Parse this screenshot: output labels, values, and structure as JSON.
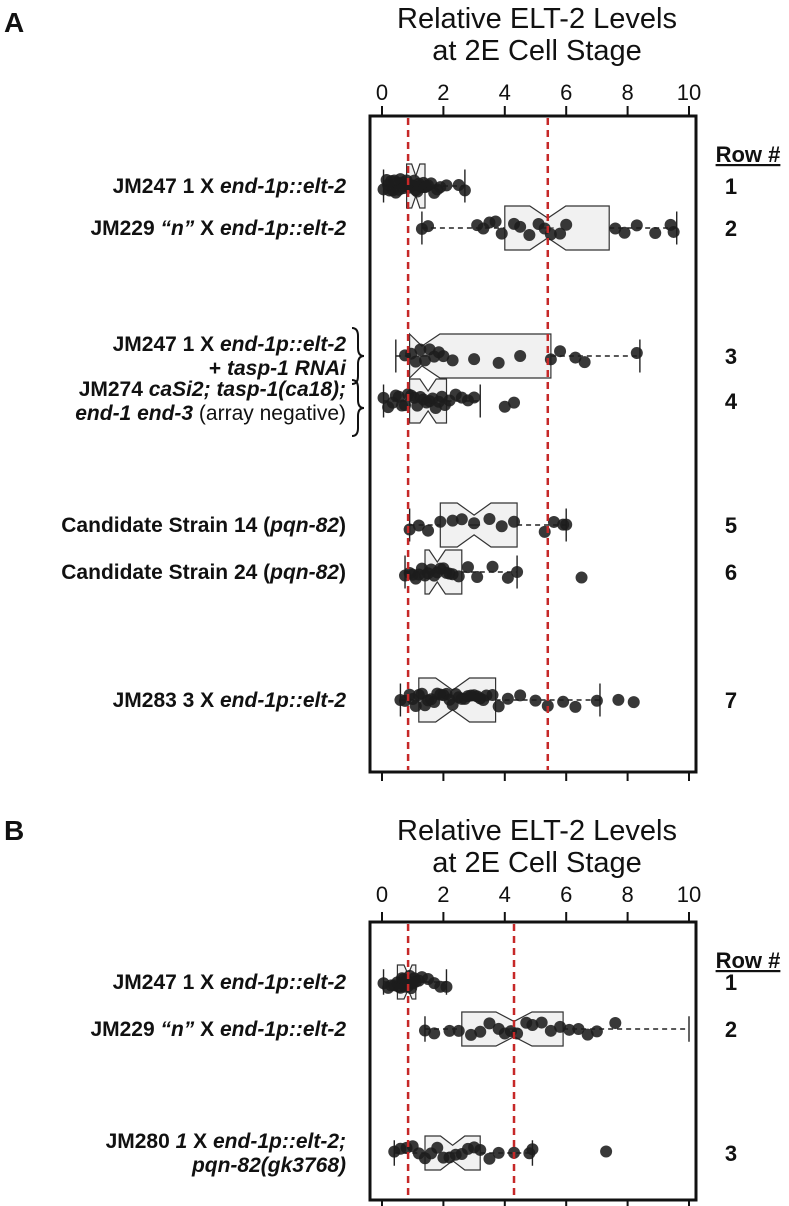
{
  "chart_data": [
    {
      "panel": "A",
      "type": "box",
      "title_lines": [
        "Relative ELT-2 Levels",
        "at 2E Cell Stage"
      ],
      "xlim": [
        0,
        10
      ],
      "x_ticks": [
        "0",
        "2",
        "4",
        "6",
        "8",
        "10"
      ],
      "reference_lines": [
        0.85,
        5.4
      ],
      "row_header": "Row #",
      "rows": [
        {
          "row": "1",
          "label_parts": [
            {
              "text": "JM247  1 X ",
              "s": "b"
            },
            {
              "text": "end-1p::elt-2",
              "s": "bi"
            }
          ],
          "box": {
            "q1": 0.8,
            "median": 1.1,
            "q3": 1.4,
            "whisker_low": 0.05,
            "whisker_high": 2.7
          },
          "points": [
            0.05,
            0.15,
            0.2,
            0.25,
            0.3,
            0.35,
            0.4,
            0.45,
            0.5,
            0.55,
            0.6,
            0.65,
            0.7,
            0.75,
            0.8,
            0.85,
            0.9,
            0.95,
            1.0,
            1.05,
            1.1,
            1.15,
            1.2,
            1.25,
            1.3,
            1.35,
            1.4,
            1.45,
            1.5,
            1.6,
            1.7,
            1.8,
            1.9,
            2.1,
            2.5,
            2.7
          ]
        },
        {
          "row": "2",
          "label_parts": [
            {
              "text": "JM229 ",
              "s": "b"
            },
            {
              "text": "“n”",
              "s": "bi"
            },
            {
              "text": " X ",
              "s": "b"
            },
            {
              "text": "end-1p::elt-2",
              "s": "bi"
            }
          ],
          "box": {
            "q1": 4.0,
            "median": 5.4,
            "q3": 7.4,
            "whisker_low": 1.3,
            "whisker_high": 9.6
          },
          "points": [
            1.3,
            1.5,
            3.1,
            3.3,
            3.5,
            3.7,
            3.9,
            4.3,
            4.5,
            4.8,
            5.1,
            5.3,
            5.5,
            5.8,
            6.0,
            7.6,
            7.9,
            8.3,
            8.9,
            9.4,
            9.5
          ]
        },
        {
          "row": "3",
          "label_parts": [
            {
              "text": "JM247  1 X ",
              "s": "b"
            },
            {
              "text": "end-1p::elt-2",
              "s": "bi"
            }
          ],
          "label2_parts": [
            {
              "text": "+ ",
              "s": "b"
            },
            {
              "text": "tasp-1 RNAi",
              "s": "bi"
            }
          ],
          "box": {
            "q1": 0.9,
            "median": 1.3,
            "q3": 5.5,
            "whisker_low": 0.45,
            "whisker_high": 8.4
          },
          "points": [
            0.75,
            0.95,
            1.1,
            1.25,
            1.4,
            1.55,
            1.7,
            1.85,
            2.0,
            2.3,
            3.0,
            3.8,
            4.5,
            5.5,
            5.8,
            6.3,
            6.6,
            8.3
          ]
        },
        {
          "row": "4",
          "label_parts": [
            {
              "text": "JM274 ",
              "s": "b"
            },
            {
              "text": "caSi2; tasp-1(ca18);",
              "s": "bi"
            }
          ],
          "label2_parts": [
            {
              "text": "end-1 end-3",
              "s": "bi"
            },
            {
              "text": " (array negative)",
              "s": "n"
            }
          ],
          "box": {
            "q1": 0.9,
            "median": 1.5,
            "q3": 2.1,
            "whisker_low": 0.05,
            "whisker_high": 3.2
          },
          "points": [
            0.05,
            0.2,
            0.35,
            0.45,
            0.55,
            0.65,
            0.75,
            0.85,
            0.95,
            1.05,
            1.15,
            1.25,
            1.35,
            1.45,
            1.55,
            1.65,
            1.75,
            1.85,
            1.95,
            2.05,
            2.2,
            2.4,
            2.6,
            2.8,
            3.0,
            4.0,
            4.3
          ]
        },
        {
          "row": "5",
          "label_parts": [
            {
              "text": "Candidate Strain 14 (",
              "s": "b"
            },
            {
              "text": "pqn-82",
              "s": "bi"
            },
            {
              "text": ")",
              "s": "b"
            }
          ],
          "box": {
            "q1": 1.9,
            "median": 3.0,
            "q3": 4.4,
            "whisker_low": 0.9,
            "whisker_high": 6.0
          },
          "points": [
            0.9,
            1.2,
            1.5,
            1.9,
            2.3,
            2.6,
            3.0,
            3.5,
            3.9,
            4.3,
            5.3,
            5.6,
            5.9,
            6.0
          ]
        },
        {
          "row": "6",
          "label_parts": [
            {
              "text": "Candidate Strain 24 (",
              "s": "b"
            },
            {
              "text": "pqn-82",
              "s": "bi"
            },
            {
              "text": ")",
              "s": "b"
            }
          ],
          "box": {
            "q1": 1.4,
            "median": 1.8,
            "q3": 2.6,
            "whisker_low": 0.75,
            "whisker_high": 4.4
          },
          "points": [
            0.75,
            0.9,
            1.0,
            1.1,
            1.2,
            1.3,
            1.4,
            1.5,
            1.6,
            1.7,
            1.8,
            1.9,
            2.0,
            2.1,
            2.2,
            2.3,
            2.5,
            2.8,
            3.1,
            3.6,
            4.1,
            4.4,
            6.5
          ]
        },
        {
          "row": "7",
          "label_parts": [
            {
              "text": "JM283  3 X ",
              "s": "b"
            },
            {
              "text": "end-1p::elt-2",
              "s": "bi"
            }
          ],
          "box": {
            "q1": 1.2,
            "median": 2.3,
            "q3": 3.7,
            "whisker_low": 0.6,
            "whisker_high": 7.1
          },
          "points": [
            0.6,
            0.75,
            0.9,
            1.0,
            1.1,
            1.2,
            1.3,
            1.4,
            1.5,
            1.6,
            1.7,
            1.8,
            1.9,
            2.0,
            2.1,
            2.2,
            2.3,
            2.4,
            2.5,
            2.6,
            2.7,
            2.8,
            2.9,
            3.0,
            3.1,
            3.2,
            3.3,
            3.4,
            3.6,
            3.8,
            4.1,
            4.5,
            5.0,
            5.4,
            5.9,
            6.3,
            7.0,
            7.7,
            8.2
          ]
        }
      ]
    },
    {
      "panel": "B",
      "type": "box",
      "title_lines": [
        "Relative ELT-2 Levels",
        "at 2E Cell Stage"
      ],
      "xlim": [
        0,
        10
      ],
      "x_ticks": [
        "0",
        "2",
        "4",
        "6",
        "8",
        "10"
      ],
      "reference_lines": [
        0.85,
        4.3
      ],
      "row_header": "Row #",
      "rows": [
        {
          "row": "1",
          "label_parts": [
            {
              "text": "JM247  1 X ",
              "s": "b"
            },
            {
              "text": "end-1p::elt-2",
              "s": "bi"
            }
          ],
          "box": {
            "q1": 0.5,
            "median": 0.85,
            "q3": 1.1,
            "whisker_low": 0.05,
            "whisker_high": 2.1
          },
          "points": [
            0.05,
            0.2,
            0.3,
            0.4,
            0.5,
            0.55,
            0.6,
            0.65,
            0.7,
            0.75,
            0.8,
            0.85,
            0.9,
            0.95,
            1.0,
            1.05,
            1.1,
            1.2,
            1.3,
            1.5,
            1.7,
            1.9,
            2.1
          ]
        },
        {
          "row": "2",
          "label_parts": [
            {
              "text": "JM229 ",
              "s": "b"
            },
            {
              "text": "“n”",
              "s": "bi"
            },
            {
              "text": " X ",
              "s": "b"
            },
            {
              "text": "end-1p::elt-2",
              "s": "bi"
            }
          ],
          "box": {
            "q1": 2.6,
            "median": 4.3,
            "q3": 5.9,
            "whisker_low": 1.4,
            "whisker_high": 10.0
          },
          "points": [
            1.4,
            1.7,
            2.2,
            2.5,
            2.9,
            3.2,
            3.5,
            3.8,
            4.0,
            4.2,
            4.4,
            4.7,
            4.9,
            5.2,
            5.5,
            5.8,
            6.1,
            6.4,
            6.7,
            7.0,
            7.6
          ]
        },
        {
          "row": "3",
          "label_parts": [
            {
              "text": "JM280  ",
              "s": "b"
            },
            {
              "text": "1",
              "s": "bi"
            },
            {
              "text": " X ",
              "s": "b"
            },
            {
              "text": "end-1p::elt-2;",
              "s": "bi"
            }
          ],
          "label2_parts": [
            {
              "text": "pqn-82(gk3768)",
              "s": "bi"
            }
          ],
          "box": {
            "q1": 1.4,
            "median": 2.3,
            "q3": 3.2,
            "whisker_low": 0.4,
            "whisker_high": 4.9
          },
          "points": [
            0.4,
            0.6,
            0.8,
            1.0,
            1.2,
            1.4,
            1.6,
            1.8,
            2.0,
            2.2,
            2.4,
            2.6,
            2.8,
            3.0,
            3.2,
            3.5,
            3.8,
            4.3,
            4.8,
            4.9,
            7.3
          ]
        }
      ]
    }
  ]
}
